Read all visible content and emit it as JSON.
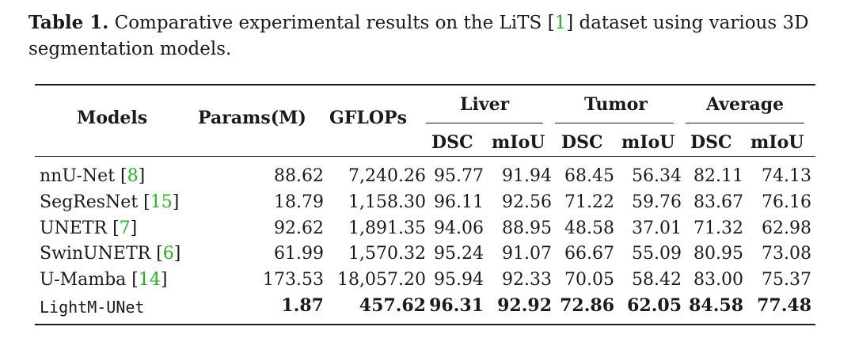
{
  "caption": {
    "label": "Table 1.",
    "text_before": " Comparative experimental results on the LiTS [",
    "cite": "1",
    "text_after": "] dataset using various 3D segmentation models."
  },
  "table": {
    "headers": {
      "models": "Models",
      "params": "Params(M)",
      "gflops": "GFLOPs",
      "groups": [
        "Liver",
        "Tumor",
        "Average"
      ],
      "metrics": [
        "DSC",
        "mIoU",
        "DSC",
        "mIoU",
        "DSC",
        "mIoU"
      ]
    },
    "rows": [
      {
        "name": "nnU-Net [",
        "cite": "8",
        "close": "]",
        "params": "88.62",
        "gflops": "7,240.26",
        "liver_dsc": "95.77",
        "liver_miou": "91.94",
        "tumor_dsc": "68.45",
        "tumor_miou": "56.34",
        "avg_dsc": "82.11",
        "avg_miou": "74.13"
      },
      {
        "name": "SegResNet [",
        "cite": "15",
        "close": "]",
        "params": "18.79",
        "gflops": "1,158.30",
        "liver_dsc": "96.11",
        "liver_miou": "92.56",
        "tumor_dsc": "71.22",
        "tumor_miou": "59.76",
        "avg_dsc": "83.67",
        "avg_miou": "76.16"
      },
      {
        "name": "UNETR [",
        "cite": "7",
        "close": "]",
        "params": "92.62",
        "gflops": "1,891.35",
        "liver_dsc": "94.06",
        "liver_miou": "88.95",
        "tumor_dsc": "48.58",
        "tumor_miou": "37.01",
        "avg_dsc": "71.32",
        "avg_miou": "62.98"
      },
      {
        "name": "SwinUNETR [",
        "cite": "6",
        "close": "]",
        "params": "61.99",
        "gflops": "1,570.32",
        "liver_dsc": "95.24",
        "liver_miou": "91.07",
        "tumor_dsc": "66.67",
        "tumor_miou": "55.09",
        "avg_dsc": "80.95",
        "avg_miou": "73.08"
      },
      {
        "name": "U-Mamba [",
        "cite": "14",
        "close": "]",
        "params": "173.53",
        "gflops": "18,057.20",
        "liver_dsc": "95.94",
        "liver_miou": "92.33",
        "tumor_dsc": "70.05",
        "tumor_miou": "58.42",
        "avg_dsc": "83.00",
        "avg_miou": "75.37"
      },
      {
        "name": "LightM-UNet",
        "params": "1.87",
        "gflops": "457.62",
        "liver_dsc": "96.31",
        "liver_miou": "92.92",
        "tumor_dsc": "72.86",
        "tumor_miou": "62.05",
        "avg_dsc": "84.58",
        "avg_miou": "77.48"
      }
    ]
  }
}
